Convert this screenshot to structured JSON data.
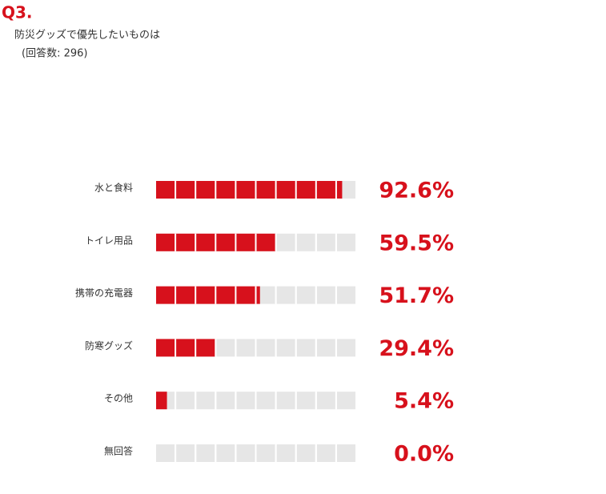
{
  "chart_data": {
    "type": "bar",
    "title": "Q3.",
    "subtitle": "防災グッズで優先したいものは",
    "note": "(回答数: 296)",
    "categories": [
      "水と食料",
      "トイレ用品",
      "携帯の充電器",
      "防寒グッズ",
      "その他",
      "無回答"
    ],
    "values": [
      92.6,
      59.5,
      51.7,
      29.4,
      5.4,
      0.0
    ],
    "value_labels": [
      "92.6%",
      "59.5%",
      "51.7%",
      "29.4%",
      "5.4%",
      "0.0%"
    ],
    "color": "#d7111c",
    "xlim": [
      0,
      100
    ]
  }
}
